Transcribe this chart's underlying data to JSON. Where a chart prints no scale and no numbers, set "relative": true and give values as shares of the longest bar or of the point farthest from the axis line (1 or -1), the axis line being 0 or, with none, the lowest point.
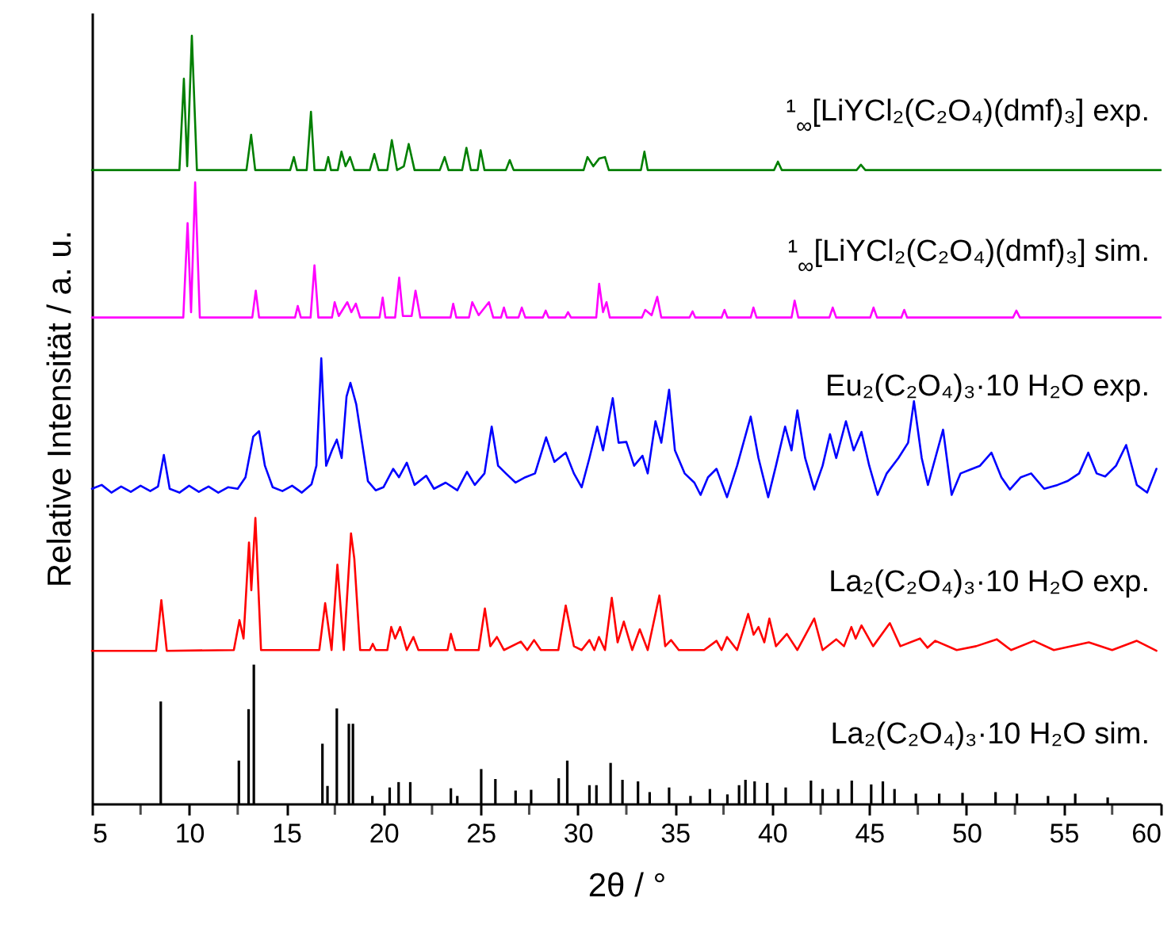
{
  "chart_data": {
    "type": "line",
    "relative": true,
    "xlabel": "2θ / °",
    "ylabel": "Relative Intensität / a. u.",
    "xlim": [
      5,
      60
    ],
    "xticks": [
      5,
      {
        "value": 7.5,
        "label": null
      },
      10,
      {
        "value": 12.5,
        "label": null
      },
      15,
      {
        "value": 17.5,
        "label": null
      },
      20,
      {
        "value": 22.5,
        "label": null
      },
      25,
      {
        "value": 27.5,
        "label": null
      },
      30,
      {
        "value": 32.5,
        "label": null
      },
      35,
      {
        "value": 37.5,
        "label": null
      },
      40,
      {
        "value": 42.5,
        "label": null
      },
      45,
      {
        "value": 47.5,
        "label": null
      },
      50,
      {
        "value": 52.5,
        "label": null
      },
      55,
      {
        "value": 57.5,
        "label": null
      },
      60
    ],
    "series": [
      {
        "name": "¹$_{∞}$[LiYCl₂(C₂O₄)(dmf)₃] exp.",
        "color": "#007f00",
        "x": [
          5,
          9.5,
          9.73,
          9.9,
          10.14,
          10.4,
          12.95,
          13.19,
          13.4,
          15.2,
          15.39,
          15.55,
          16.05,
          16.27,
          16.45,
          17.0,
          17.16,
          17.3,
          17.65,
          17.84,
          18.05,
          18.28,
          18.5,
          19.3,
          19.53,
          19.75,
          20.2,
          20.43,
          20.7,
          21.05,
          21.3,
          21.6,
          22.9,
          23.15,
          23.35,
          24.05,
          24.27,
          24.5,
          24.85,
          25.0,
          25.2,
          26.3,
          26.5,
          26.7,
          30.3,
          30.5,
          30.8,
          31.1,
          31.4,
          31.6,
          33.25,
          33.43,
          33.6,
          40.1,
          40.3,
          40.5,
          44.35,
          44.57,
          44.8,
          60
        ],
        "values": [
          0.825,
          0.825,
          0.944,
          0.83,
          1.0,
          0.825,
          0.825,
          0.871,
          0.825,
          0.825,
          0.842,
          0.825,
          0.825,
          0.901,
          0.825,
          0.825,
          0.842,
          0.825,
          0.825,
          0.849,
          0.83,
          0.842,
          0.825,
          0.825,
          0.846,
          0.825,
          0.825,
          0.864,
          0.825,
          0.83,
          0.859,
          0.825,
          0.825,
          0.842,
          0.825,
          0.825,
          0.854,
          0.825,
          0.825,
          0.851,
          0.825,
          0.825,
          0.838,
          0.825,
          0.825,
          0.842,
          0.83,
          0.84,
          0.842,
          0.825,
          0.825,
          0.849,
          0.825,
          0.825,
          0.836,
          0.825,
          0.825,
          0.832,
          0.825,
          0.825
        ]
      },
      {
        "name": "¹$_{∞}$[LiYCl₂(C₂O₄)(dmf)₃] sim.",
        "color": "#ff00ff",
        "x": [
          5,
          9.7,
          9.92,
          10.1,
          10.31,
          10.55,
          13.25,
          13.43,
          13.6,
          15.45,
          15.59,
          15.75,
          16.25,
          16.45,
          16.65,
          17.35,
          17.49,
          17.7,
          18.14,
          18.35,
          18.58,
          18.8,
          19.8,
          19.96,
          20.1,
          20.6,
          20.81,
          21.0,
          21.45,
          21.65,
          21.9,
          23.45,
          23.59,
          23.75,
          24.4,
          24.57,
          24.9,
          25.43,
          25.65,
          26.05,
          26.2,
          26.35,
          26.95,
          27.12,
          27.3,
          28.2,
          28.35,
          28.5,
          29.35,
          29.5,
          29.65,
          30.95,
          31.1,
          31.3,
          31.48,
          31.65,
          33.3,
          33.47,
          33.8,
          34.09,
          34.3,
          35.75,
          35.91,
          36.05,
          37.4,
          37.55,
          37.7,
          38.9,
          39.04,
          39.2,
          41.0,
          41.16,
          41.35,
          42.95,
          43.12,
          43.3,
          45.05,
          45.22,
          45.4,
          46.65,
          46.8,
          46.95,
          52.4,
          52.57,
          52.75,
          60
        ],
        "values": [
          0.633,
          0.633,
          0.756,
          0.64,
          0.809,
          0.633,
          0.633,
          0.668,
          0.633,
          0.633,
          0.648,
          0.633,
          0.633,
          0.701,
          0.633,
          0.633,
          0.653,
          0.635,
          0.653,
          0.64,
          0.651,
          0.633,
          0.633,
          0.659,
          0.633,
          0.633,
          0.685,
          0.635,
          0.635,
          0.668,
          0.633,
          0.633,
          0.651,
          0.633,
          0.633,
          0.653,
          0.636,
          0.653,
          0.633,
          0.633,
          0.646,
          0.633,
          0.633,
          0.646,
          0.633,
          0.633,
          0.642,
          0.633,
          0.633,
          0.64,
          0.633,
          0.633,
          0.677,
          0.64,
          0.653,
          0.633,
          0.633,
          0.643,
          0.636,
          0.66,
          0.633,
          0.633,
          0.641,
          0.633,
          0.633,
          0.643,
          0.633,
          0.633,
          0.646,
          0.633,
          0.633,
          0.655,
          0.633,
          0.633,
          0.646,
          0.633,
          0.633,
          0.646,
          0.633,
          0.633,
          0.643,
          0.633,
          0.633,
          0.642,
          0.633,
          0.633
        ]
      },
      {
        "name": "Eu₂(C₂O₄)₃·10 H₂O exp.",
        "color": "#0000ff",
        "x": [
          5,
          5.5,
          6,
          6.5,
          7,
          7.5,
          8,
          8.4,
          8.7,
          9.0,
          9.5,
          10,
          10.5,
          11,
          11.5,
          12,
          12.5,
          12.9,
          13.3,
          13.6,
          13.9,
          14.3,
          14.8,
          15.3,
          15.8,
          16.3,
          16.55,
          16.8,
          17.05,
          17.35,
          17.6,
          17.85,
          18.1,
          18.3,
          18.6,
          18.9,
          19.2,
          19.6,
          20.0,
          20.5,
          20.8,
          21.2,
          21.6,
          22.2,
          22.6,
          23.2,
          23.8,
          24.3,
          24.7,
          25.2,
          25.57,
          25.9,
          26.3,
          26.8,
          27.3,
          27.8,
          28.37,
          28.8,
          29.38,
          29.8,
          30.2,
          30.6,
          31.0,
          31.3,
          31.8,
          32.1,
          32.5,
          32.9,
          33.33,
          33.6,
          34.0,
          34.3,
          34.7,
          35.0,
          35.5,
          36.0,
          36.32,
          36.7,
          37.14,
          37.68,
          38.2,
          38.9,
          39.3,
          39.8,
          40.2,
          40.67,
          41.0,
          41.3,
          41.7,
          42.17,
          42.6,
          42.98,
          43.3,
          43.8,
          44.2,
          44.6,
          45.0,
          45.43,
          45.9,
          46.5,
          47.0,
          47.3,
          47.7,
          48.02,
          48.4,
          48.8,
          49.24,
          49.7,
          50.2,
          50.7,
          51.29,
          51.8,
          52.24,
          52.8,
          53.33,
          54.0,
          54.69,
          55.2,
          55.8,
          56.27,
          56.7,
          57.14,
          57.7,
          58.22,
          58.77,
          59.3,
          59.78
        ],
        "values": [
          0.41,
          0.415,
          0.405,
          0.413,
          0.406,
          0.414,
          0.407,
          0.413,
          0.454,
          0.41,
          0.405,
          0.414,
          0.406,
          0.413,
          0.405,
          0.412,
          0.41,
          0.425,
          0.478,
          0.485,
          0.44,
          0.412,
          0.407,
          0.414,
          0.405,
          0.416,
          0.44,
          0.58,
          0.44,
          0.46,
          0.474,
          0.45,
          0.53,
          0.548,
          0.52,
          0.47,
          0.42,
          0.408,
          0.412,
          0.436,
          0.425,
          0.444,
          0.415,
          0.427,
          0.41,
          0.418,
          0.408,
          0.432,
          0.415,
          0.43,
          0.491,
          0.44,
          0.43,
          0.418,
          0.425,
          0.43,
          0.477,
          0.445,
          0.457,
          0.43,
          0.412,
          0.45,
          0.491,
          0.46,
          0.528,
          0.47,
          0.471,
          0.44,
          0.453,
          0.43,
          0.498,
          0.47,
          0.539,
          0.46,
          0.43,
          0.418,
          0.402,
          0.425,
          0.436,
          0.399,
          0.44,
          0.504,
          0.45,
          0.399,
          0.44,
          0.491,
          0.46,
          0.512,
          0.45,
          0.409,
          0.44,
          0.481,
          0.45,
          0.498,
          0.46,
          0.484,
          0.44,
          0.402,
          0.43,
          0.45,
          0.47,
          0.524,
          0.45,
          0.415,
          0.45,
          0.487,
          0.402,
          0.43,
          0.435,
          0.44,
          0.457,
          0.425,
          0.409,
          0.425,
          0.43,
          0.41,
          0.415,
          0.42,
          0.43,
          0.457,
          0.43,
          0.426,
          0.44,
          0.467,
          0.415,
          0.405,
          0.436
        ]
      },
      {
        "name": "La₂(C₂O₄)₃·10 H₂O exp.",
        "color": "#ff0000",
        "x": [
          5,
          8.3,
          8.57,
          8.85,
          12.3,
          12.59,
          12.8,
          13.08,
          13.2,
          13.41,
          13.7,
          16.7,
          17.0,
          17.33,
          17.63,
          17.96,
          18.33,
          18.5,
          18.8,
          19.3,
          19.45,
          19.6,
          20.2,
          20.4,
          20.6,
          20.86,
          21.2,
          21.54,
          21.8,
          23.3,
          23.47,
          23.7,
          24.9,
          25.22,
          25.5,
          25.84,
          26.2,
          27.07,
          27.4,
          27.75,
          28.1,
          29.0,
          29.38,
          29.8,
          30.2,
          30.6,
          30.85,
          31.09,
          31.4,
          31.75,
          32.05,
          32.37,
          32.8,
          33.19,
          33.6,
          34.2,
          34.5,
          34.8,
          35.2,
          36.5,
          37.14,
          37.4,
          37.68,
          38.2,
          38.77,
          39.05,
          39.3,
          39.6,
          39.86,
          40.2,
          40.76,
          41.3,
          42.17,
          42.6,
          43.3,
          43.7,
          44.08,
          44.3,
          44.6,
          45.2,
          46.06,
          46.6,
          47.61,
          48.0,
          48.4,
          49.5,
          50.5,
          51.56,
          52.3,
          53.47,
          54.5,
          56.3,
          57.5,
          58.77,
          59.78
        ],
        "values": [
          0.199,
          0.199,
          0.265,
          0.199,
          0.2,
          0.239,
          0.215,
          0.34,
          0.278,
          0.372,
          0.2,
          0.2,
          0.261,
          0.2,
          0.311,
          0.2,
          0.352,
          0.319,
          0.2,
          0.2,
          0.208,
          0.2,
          0.2,
          0.23,
          0.215,
          0.23,
          0.2,
          0.217,
          0.2,
          0.2,
          0.221,
          0.2,
          0.2,
          0.254,
          0.205,
          0.217,
          0.2,
          0.211,
          0.2,
          0.213,
          0.2,
          0.2,
          0.258,
          0.205,
          0.2,
          0.213,
          0.2,
          0.217,
          0.2,
          0.268,
          0.21,
          0.237,
          0.2,
          0.227,
          0.2,
          0.271,
          0.205,
          0.213,
          0.2,
          0.2,
          0.212,
          0.2,
          0.217,
          0.2,
          0.247,
          0.22,
          0.23,
          0.21,
          0.241,
          0.205,
          0.221,
          0.2,
          0.241,
          0.2,
          0.214,
          0.205,
          0.23,
          0.215,
          0.232,
          0.205,
          0.235,
          0.205,
          0.215,
          0.203,
          0.212,
          0.2,
          0.205,
          0.214,
          0.2,
          0.212,
          0.2,
          0.21,
          0.2,
          0.212,
          0.199
        ]
      },
      {
        "name": "La₂(C₂O₄)₃·10 H₂O sim.",
        "type": "bar",
        "color": "#000000",
        "x": [
          8.54,
          12.56,
          13.06,
          13.33,
          16.86,
          17.12,
          17.6,
          18.22,
          18.43,
          19.43,
          20.32,
          20.78,
          21.38,
          23.47,
          23.8,
          25.03,
          25.76,
          26.8,
          27.6,
          29.02,
          29.46,
          30.6,
          30.96,
          31.69,
          32.3,
          33.1,
          33.7,
          34.7,
          35.8,
          36.8,
          37.7,
          38.3,
          38.63,
          39.1,
          39.75,
          40.7,
          42.0,
          42.6,
          43.4,
          44.1,
          45.1,
          45.7,
          46.3,
          47.4,
          48.6,
          49.8,
          51.5,
          52.6,
          54.2,
          55.6,
          57.27
        ],
        "values": [
          0.133,
          0.056,
          0.123,
          0.181,
          0.078,
          0.023,
          0.124,
          0.104,
          0.104,
          0.01,
          0.021,
          0.028,
          0.028,
          0.02,
          0.01,
          0.045,
          0.032,
          0.017,
          0.018,
          0.033,
          0.056,
          0.024,
          0.024,
          0.053,
          0.031,
          0.029,
          0.015,
          0.021,
          0.01,
          0.019,
          0.012,
          0.024,
          0.031,
          0.029,
          0.027,
          0.021,
          0.03,
          0.019,
          0.019,
          0.03,
          0.025,
          0.029,
          0.019,
          0.013,
          0.013,
          0.014,
          0.015,
          0.013,
          0.01,
          0.013,
          0.008
        ]
      }
    ]
  }
}
